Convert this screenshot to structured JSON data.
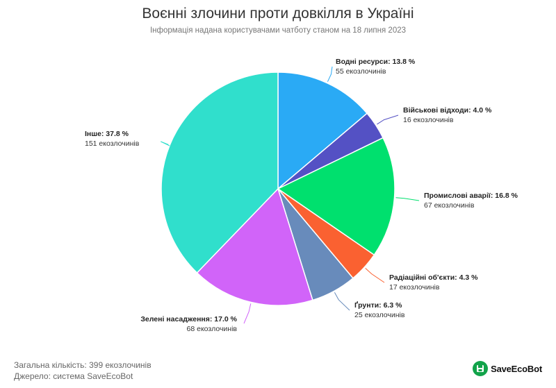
{
  "title": "Воєнні злочини проти довкілля в Україні",
  "subtitle": "Інформація надана користувачами чатботу станом на 18 липня 2023",
  "chart_data": {
    "type": "pie",
    "title": "Воєнні злочини проти довкілля в Україні",
    "subtitle": "Інформація надана користувачами чатботу станом на 18 липня 2023",
    "unit": "екозлочинів",
    "start_angle_deg": 0,
    "direction": "clockwise",
    "slices": [
      {
        "label": "Водні ресурси",
        "percent": 13.8,
        "percent_text": "13.8 %",
        "count": 55,
        "count_text": "55 екозлочинів",
        "color": "#2aaaf5"
      },
      {
        "label": "Військові відходи",
        "percent": 4.0,
        "percent_text": "4.0 %",
        "count": 16,
        "count_text": "16 екозлочинів",
        "color": "#5451c4"
      },
      {
        "label": "Промислові аварії",
        "percent": 16.8,
        "percent_text": "16.8 %",
        "count": 67,
        "count_text": "67 екозлочинів",
        "color": "#00e06e"
      },
      {
        "label": "Радіаційні об'єкти",
        "percent": 4.3,
        "percent_text": "4.3 %",
        "count": 17,
        "count_text": "17 екозлочинів",
        "color": "#fa6131"
      },
      {
        "label": "Ґрунти",
        "percent": 6.3,
        "percent_text": "6.3 %",
        "count": 25,
        "count_text": "25 екозлочинів",
        "color": "#688bbb"
      },
      {
        "label": "Зелені насадження",
        "percent": 17.0,
        "percent_text": "17.0 %",
        "count": 68,
        "count_text": "68 екозлочинів",
        "color": "#d164f9"
      },
      {
        "label": "Інше",
        "percent": 37.8,
        "percent_text": "37.8 %",
        "count": 151,
        "count_text": "151 екозлочинів",
        "color": "#30dfcc"
      }
    ]
  },
  "footer": {
    "total": "Загальна кількість: 399 екозлочинів",
    "source": "Джерело: система SaveEcoBot"
  },
  "logo": {
    "text": "SaveEcoBot",
    "icon": "saveecobot-logo-icon",
    "color": "#12a34a"
  }
}
